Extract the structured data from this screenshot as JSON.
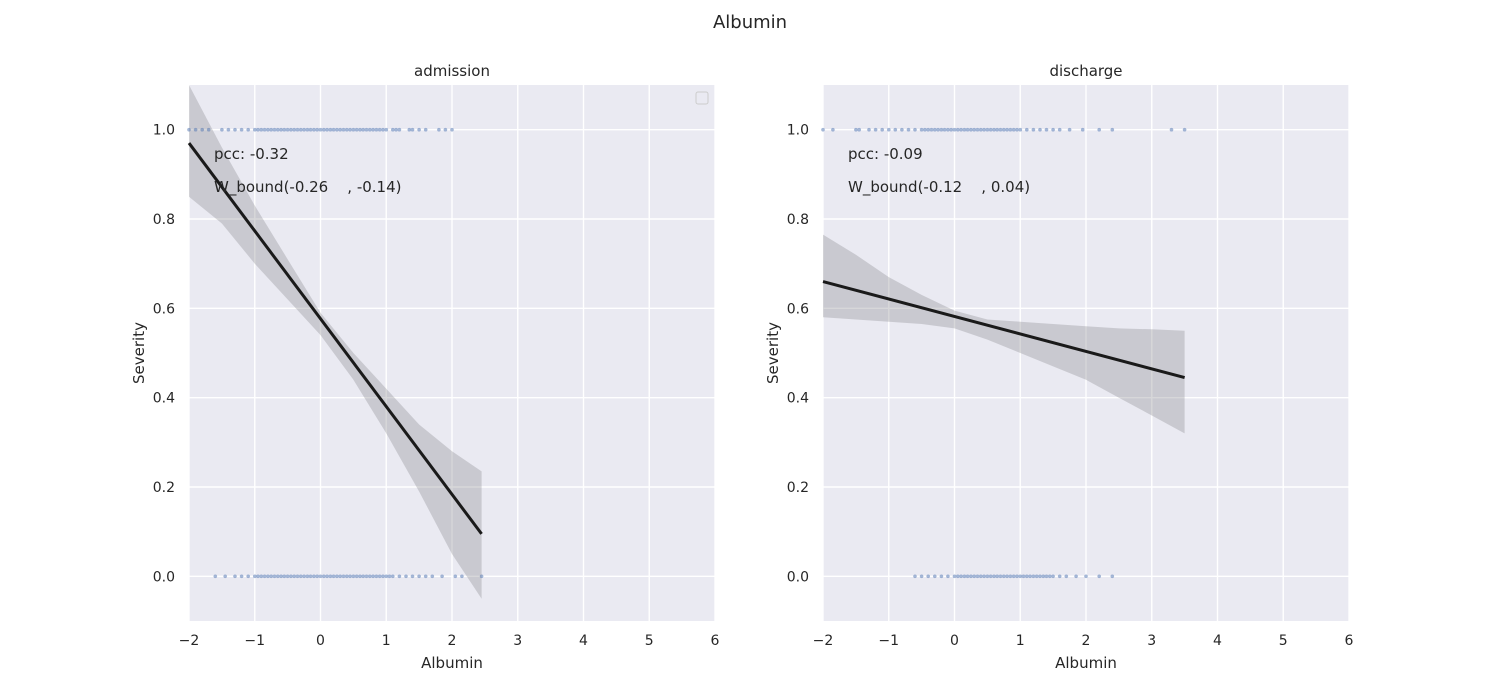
{
  "figure_title": "Albumin",
  "chart_data": [
    {
      "type": "scatter",
      "title": "admission",
      "xlabel": "Albumin",
      "ylabel": "Severity",
      "xlim": [
        -2,
        6
      ],
      "ylim": [
        -0.1,
        1.1
      ],
      "xticks": [
        -2,
        -1,
        0,
        1,
        2,
        3,
        4,
        5,
        6
      ],
      "yticks": [
        0.0,
        0.2,
        0.4,
        0.6,
        0.8,
        1.0
      ],
      "grid": true,
      "legend": "top-right (empty)",
      "annotations": [
        "pcc: -0.32",
        "W_bound(-0.26    , -0.14)"
      ],
      "points": {
        "y1": {
          "x": [
            -2.0,
            -1.9,
            -1.8,
            -1.7,
            -1.5,
            -1.4,
            -1.3,
            -1.2,
            -1.1,
            -1.0,
            -0.95,
            -0.9,
            -0.85,
            -0.8,
            -0.75,
            -0.7,
            -0.65,
            -0.6,
            -0.55,
            -0.5,
            -0.45,
            -0.4,
            -0.35,
            -0.3,
            -0.25,
            -0.2,
            -0.15,
            -0.1,
            -0.05,
            0.0,
            0.05,
            0.1,
            0.15,
            0.2,
            0.25,
            0.3,
            0.35,
            0.4,
            0.45,
            0.5,
            0.55,
            0.6,
            0.65,
            0.7,
            0.75,
            0.8,
            0.85,
            0.9,
            0.95,
            1.0,
            1.1,
            1.15,
            1.2,
            1.35,
            1.4,
            1.5,
            1.6,
            1.8,
            1.9,
            2.0
          ]
        },
        "y0": {
          "x": [
            -1.6,
            -1.45,
            -1.3,
            -1.2,
            -1.1,
            -1.0,
            -0.95,
            -0.9,
            -0.85,
            -0.8,
            -0.75,
            -0.7,
            -0.65,
            -0.6,
            -0.55,
            -0.5,
            -0.45,
            -0.4,
            -0.35,
            -0.3,
            -0.25,
            -0.2,
            -0.15,
            -0.1,
            -0.05,
            0.0,
            0.05,
            0.1,
            0.15,
            0.2,
            0.25,
            0.3,
            0.35,
            0.4,
            0.45,
            0.5,
            0.55,
            0.6,
            0.65,
            0.7,
            0.75,
            0.8,
            0.85,
            0.9,
            0.95,
            1.0,
            1.05,
            1.1,
            1.2,
            1.3,
            1.4,
            1.5,
            1.6,
            1.7,
            1.85,
            2.05,
            2.15,
            2.45
          ]
        }
      },
      "regression": {
        "x": [
          -2.0,
          2.45
        ],
        "y": [
          0.97,
          0.095
        ]
      },
      "ci_band": {
        "x": [
          -2.0,
          -1.5,
          -1.0,
          -0.5,
          0.0,
          0.5,
          1.0,
          1.5,
          2.0,
          2.45
        ],
        "lower": [
          0.85,
          0.79,
          0.7,
          0.62,
          0.54,
          0.44,
          0.32,
          0.19,
          0.05,
          -0.05
        ],
        "upper": [
          1.1,
          0.96,
          0.83,
          0.71,
          0.59,
          0.5,
          0.42,
          0.34,
          0.28,
          0.235
        ]
      }
    },
    {
      "type": "scatter",
      "title": "discharge",
      "xlabel": "Albumin",
      "ylabel": "Severity",
      "xlim": [
        -2,
        6
      ],
      "ylim": [
        -0.1,
        1.1
      ],
      "xticks": [
        -2,
        -1,
        0,
        1,
        2,
        3,
        4,
        5,
        6
      ],
      "yticks": [
        0.0,
        0.2,
        0.4,
        0.6,
        0.8,
        1.0
      ],
      "grid": true,
      "legend": "none",
      "annotations": [
        "pcc: -0.09",
        "W_bound(-0.12    , 0.04)"
      ],
      "points": {
        "y1": {
          "x": [
            -2.0,
            -1.85,
            -1.5,
            -1.45,
            -1.3,
            -1.2,
            -1.1,
            -1.0,
            -0.9,
            -0.8,
            -0.7,
            -0.6,
            -0.5,
            -0.45,
            -0.4,
            -0.35,
            -0.3,
            -0.25,
            -0.2,
            -0.15,
            -0.1,
            -0.05,
            0.0,
            0.05,
            0.1,
            0.15,
            0.2,
            0.25,
            0.3,
            0.35,
            0.4,
            0.45,
            0.5,
            0.55,
            0.6,
            0.65,
            0.7,
            0.75,
            0.8,
            0.85,
            0.9,
            0.95,
            1.0,
            1.1,
            1.2,
            1.3,
            1.4,
            1.5,
            1.6,
            1.75,
            1.95,
            2.2,
            2.4,
            3.3,
            3.5
          ]
        },
        "y0": {
          "x": [
            -0.6,
            -0.5,
            -0.4,
            -0.3,
            -0.2,
            -0.1,
            0.0,
            0.05,
            0.1,
            0.15,
            0.2,
            0.25,
            0.3,
            0.35,
            0.4,
            0.45,
            0.5,
            0.55,
            0.6,
            0.65,
            0.7,
            0.75,
            0.8,
            0.85,
            0.9,
            0.95,
            1.0,
            1.05,
            1.1,
            1.15,
            1.2,
            1.25,
            1.3,
            1.35,
            1.4,
            1.45,
            1.5,
            1.6,
            1.7,
            1.85,
            2.0,
            2.2,
            2.4
          ]
        }
      },
      "regression": {
        "x": [
          -2.0,
          3.5
        ],
        "y": [
          0.66,
          0.445
        ]
      },
      "ci_band": {
        "x": [
          -2.0,
          -1.5,
          -1.0,
          -0.5,
          0.0,
          0.5,
          1.0,
          1.5,
          2.0,
          2.5,
          3.0,
          3.5
        ],
        "lower": [
          0.58,
          0.575,
          0.57,
          0.565,
          0.555,
          0.53,
          0.5,
          0.47,
          0.44,
          0.4,
          0.36,
          0.32
        ],
        "upper": [
          0.765,
          0.72,
          0.67,
          0.63,
          0.595,
          0.575,
          0.57,
          0.565,
          0.56,
          0.555,
          0.553,
          0.55
        ]
      }
    }
  ]
}
